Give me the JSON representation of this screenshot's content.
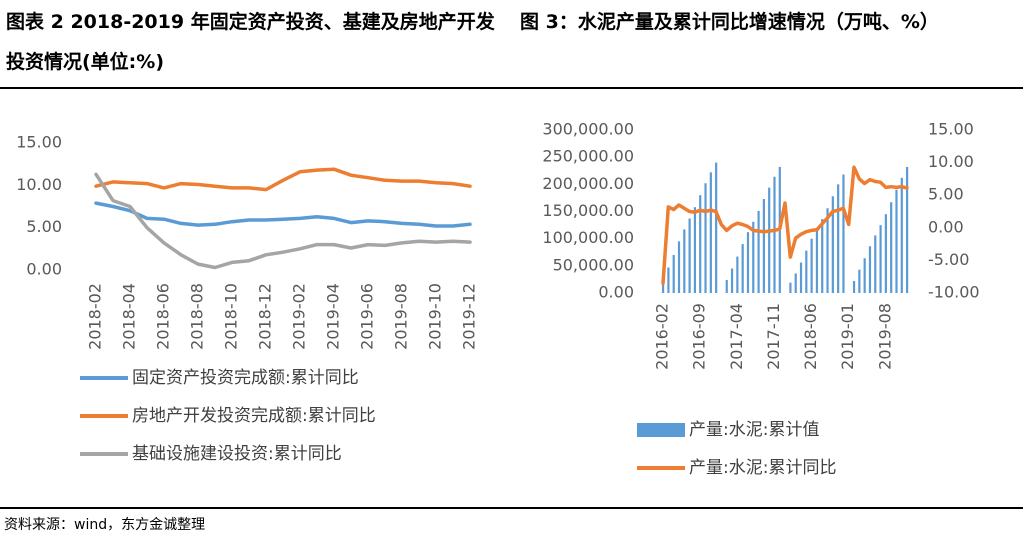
{
  "chart_data": [
    {
      "type": "line",
      "title": "图表 2  2018-2019 年固定资产投资、基建及房地产开发投资情况(单位:%)",
      "categories": [
        "2018-02",
        null,
        "2018-04",
        null,
        "2018-06",
        null,
        "2018-08",
        null,
        "2018-10",
        null,
        "2018-12",
        null,
        "2019-02",
        null,
        "2019-04",
        null,
        "2019-06",
        null,
        "2019-08",
        null,
        "2019-10",
        null,
        "2019-12"
      ],
      "ylim": [
        0,
        15
      ],
      "yticks": [
        {
          "value": 0,
          "label": "0.00"
        },
        {
          "value": 5,
          "label": "5.00"
        },
        {
          "value": 10,
          "label": "10.00"
        },
        {
          "value": 15,
          "label": "15.00"
        }
      ],
      "grid": false,
      "series": [
        {
          "name": "固定资产投资完成额:累计同比",
          "color": "#5b9bd5",
          "values": [
            7.9,
            7.5,
            7.0,
            6.1,
            6.0,
            5.5,
            5.3,
            5.4,
            5.7,
            5.9,
            5.9,
            6.0,
            6.1,
            6.3,
            6.1,
            5.6,
            5.8,
            5.7,
            5.5,
            5.4,
            5.2,
            5.2,
            5.4
          ]
        },
        {
          "name": "房地产开发投资完成额:累计同比",
          "color": "#ed7d31",
          "values": [
            9.9,
            10.4,
            10.3,
            10.2,
            9.7,
            10.2,
            10.1,
            9.9,
            9.7,
            9.7,
            9.5,
            10.6,
            11.6,
            11.8,
            11.9,
            11.2,
            10.9,
            10.6,
            10.5,
            10.5,
            10.3,
            10.2,
            9.9
          ]
        },
        {
          "name": "基础设施建设投资:累计同比",
          "color": "#a5a5a5",
          "values": [
            11.3,
            8.2,
            7.5,
            5.0,
            3.2,
            1.8,
            0.7,
            0.3,
            0.9,
            1.1,
            1.8,
            2.1,
            2.5,
            3.0,
            3.0,
            2.6,
            3.0,
            2.9,
            3.2,
            3.4,
            3.3,
            3.4,
            3.3
          ]
        }
      ]
    },
    {
      "type": "combo",
      "title": "图 3：水泥产量及累计同比增速情况（万吨、%）",
      "categories": [
        "2016-02",
        null,
        null,
        null,
        null,
        null,
        null,
        "2016-09",
        null,
        null,
        null,
        null,
        null,
        null,
        "2017-04",
        null,
        null,
        null,
        null,
        null,
        null,
        "2017-11",
        null,
        null,
        null,
        null,
        null,
        null,
        "2018-06",
        null,
        null,
        null,
        null,
        null,
        null,
        "2019-01",
        null,
        null,
        null,
        null,
        null,
        null,
        "2019-08",
        null,
        null,
        null,
        null
      ],
      "ylim": [
        0,
        300000
      ],
      "yticks": [
        {
          "value": 0,
          "label": "0.00"
        },
        {
          "value": 50000,
          "label": "50,000.00"
        },
        {
          "value": 100000,
          "label": "100,000.00"
        },
        {
          "value": 150000,
          "label": "150,000.00"
        },
        {
          "value": 200000,
          "label": "200,000.00"
        },
        {
          "value": 250000,
          "label": "250,000.00"
        },
        {
          "value": 300000,
          "label": "300,000.00"
        }
      ],
      "y2lim": [
        -10,
        15
      ],
      "y2ticks": [
        {
          "value": -10,
          "label": "-10.00"
        },
        {
          "value": -5,
          "label": "-5.00"
        },
        {
          "value": 0,
          "label": "0.00"
        },
        {
          "value": 5,
          "label": "5.00"
        },
        {
          "value": 10,
          "label": "10.00"
        },
        {
          "value": 15,
          "label": "15.00"
        }
      ],
      "grid": false,
      "series": [
        {
          "name": "产量:水泥:累计值",
          "type": "bar",
          "color": "#5b9bd5",
          "values": [
            26000,
            47000,
            70000,
            95000,
            117000,
            137000,
            158000,
            180000,
            202000,
            222000,
            240000,
            null,
            24000,
            45000,
            67000,
            90000,
            112000,
            131000,
            151000,
            173000,
            194000,
            214000,
            232000,
            null,
            19000,
            36000,
            56000,
            78000,
            100000,
            118000,
            136000,
            156000,
            178000,
            200000,
            218000,
            null,
            22000,
            43000,
            64000,
            86000,
            106000,
            125000,
            145000,
            167000,
            190000,
            212000,
            232000
          ]
        },
        {
          "name": "产量:水泥:累计同比",
          "type": "line",
          "axis": "y2",
          "color": "#ed7d31",
          "values": [
            -8.5,
            3.2,
            2.8,
            3.5,
            3.0,
            2.5,
            2.4,
            2.7,
            2.5,
            2.7,
            2.5,
            0.5,
            -0.4,
            0.3,
            0.7,
            0.5,
            0.2,
            -0.4,
            -0.5,
            -0.6,
            -0.5,
            -0.4,
            -0.2,
            3.8,
            -4.5,
            -1.6,
            -1.0,
            -0.6,
            -0.4,
            -0.3,
            0.6,
            1.5,
            2.5,
            2.7,
            3.0,
            0.5,
            9.3,
            7.5,
            6.8,
            7.4,
            7.1,
            7.0,
            6.2,
            6.3,
            6.2,
            6.3,
            6.1
          ]
        }
      ]
    }
  ],
  "source": "资料来源：wind，东方金诚整理"
}
